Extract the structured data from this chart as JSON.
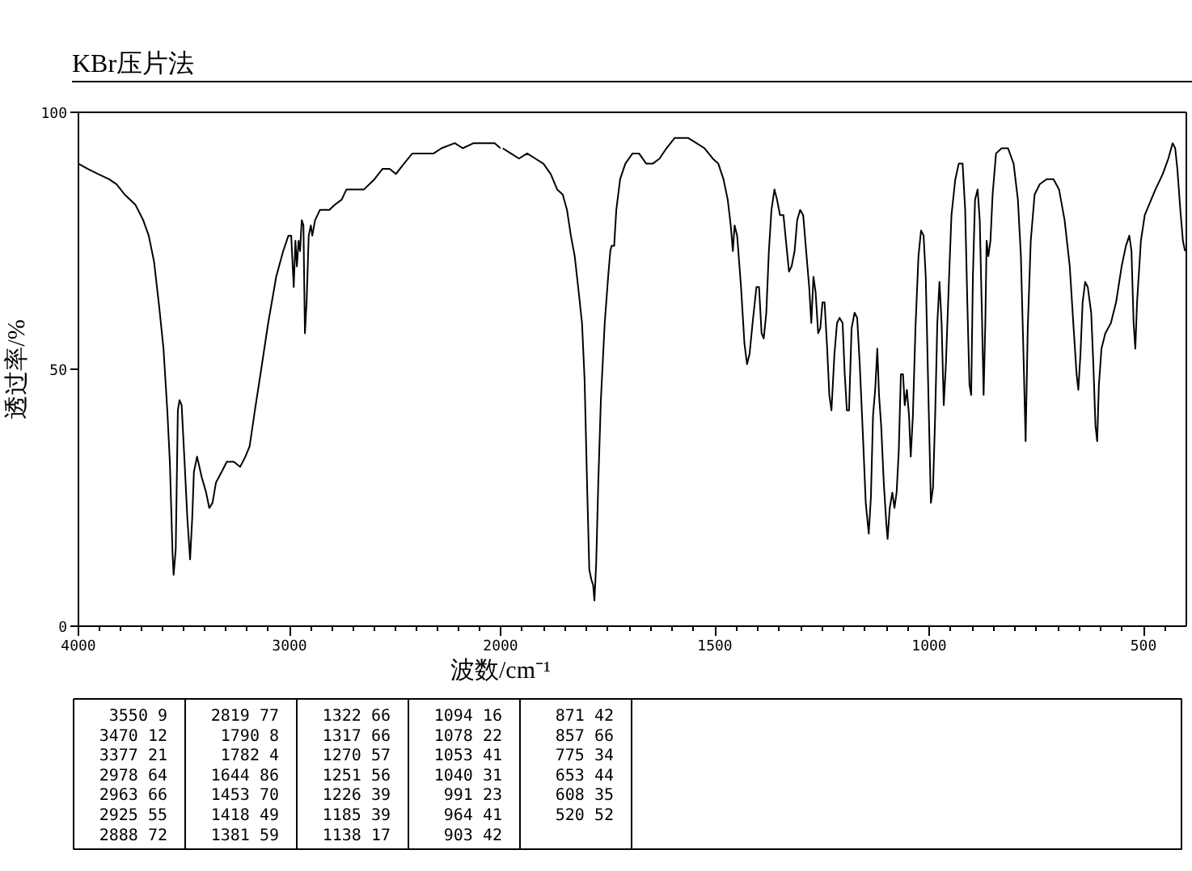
{
  "chart_data": [
    {
      "type": "line",
      "title": "KBr压片法",
      "xlabel": "波数/cm⁻¹",
      "ylabel": "透过率/%",
      "color": "#000000",
      "xlim": [
        4000,
        2000
      ],
      "xticks": [
        4000,
        3000,
        2000
      ],
      "ylim": [
        0,
        100
      ],
      "yticks": [
        0,
        50,
        100
      ],
      "grid": false,
      "x": [
        4000,
        3957,
        3907,
        3856,
        3819,
        3781,
        3730,
        3693,
        3667,
        3642,
        3617,
        3597,
        3579,
        3567,
        3554,
        3549,
        3539,
        3529,
        3521,
        3511,
        3496,
        3484,
        3471,
        3461,
        3453,
        3438,
        3416,
        3395,
        3380,
        3365,
        3348,
        3322,
        3297,
        3264,
        3234,
        3209,
        3189,
        3164,
        3134,
        3101,
        3063,
        3030,
        3005,
        2992,
        2980,
        2972,
        2965,
        2957,
        2950,
        2942,
        2934,
        2927,
        2919,
        2909,
        2899,
        2892,
        2879,
        2856,
        2836,
        2811,
        2786,
        2753,
        2730,
        2698,
        2647,
        2597,
        2559,
        2526,
        2496,
        2458,
        2418,
        2380,
        2317,
        2280,
        2217,
        2179,
        2128,
        2065,
        2028,
        2000
      ],
      "values": [
        90,
        89,
        88,
        87,
        86,
        84,
        82,
        79,
        76,
        71,
        62,
        54,
        42,
        32,
        14,
        10,
        15,
        42,
        44,
        43,
        31,
        21,
        13,
        21,
        30,
        33,
        29,
        26,
        23,
        24,
        28,
        30,
        32,
        32,
        31,
        33,
        35,
        42,
        50,
        59,
        68,
        73,
        76,
        76,
        66,
        75,
        70,
        75,
        73,
        79,
        78,
        57,
        63,
        76,
        78,
        76,
        79,
        81,
        81,
        81,
        82,
        83,
        85,
        85,
        85,
        87,
        89,
        89,
        88,
        90,
        92,
        92,
        92,
        93,
        94,
        93,
        94,
        94,
        94,
        93
      ]
    },
    {
      "type": "line",
      "color": "#000000",
      "xlim": [
        2000,
        400
      ],
      "xticks": [
        1500,
        1000,
        500
      ],
      "ylim": [
        0,
        100
      ],
      "tick_labels": "x",
      "grid": false,
      "x": [
        1995,
        1976,
        1957,
        1938,
        1919,
        1900,
        1883,
        1868,
        1855,
        1845,
        1836,
        1827,
        1819,
        1810,
        1804,
        1798,
        1793,
        1788,
        1784,
        1781,
        1777,
        1772,
        1766,
        1757,
        1749,
        1744,
        1741,
        1735,
        1730,
        1721,
        1709,
        1692,
        1677,
        1660,
        1645,
        1629,
        1613,
        1594,
        1575,
        1562,
        1543,
        1524,
        1505,
        1492,
        1480,
        1470,
        1463,
        1458,
        1454,
        1448,
        1439,
        1431,
        1425,
        1419,
        1412,
        1403,
        1397,
        1391,
        1386,
        1380,
        1374,
        1368,
        1361,
        1355,
        1348,
        1340,
        1333,
        1327,
        1321,
        1314,
        1308,
        1301,
        1294,
        1287,
        1280,
        1275,
        1270,
        1265,
        1259,
        1254,
        1249,
        1244,
        1238,
        1233,
        1228,
        1221,
        1215,
        1209,
        1202,
        1197,
        1192,
        1187,
        1181,
        1174,
        1168,
        1162,
        1154,
        1148,
        1141,
        1136,
        1131,
        1126,
        1121,
        1117,
        1112,
        1106,
        1100,
        1097,
        1092,
        1086,
        1081,
        1076,
        1071,
        1066,
        1061,
        1057,
        1052,
        1047,
        1043,
        1038,
        1032,
        1025,
        1019,
        1013,
        1008,
        1001,
        996,
        991,
        986,
        981,
        976,
        971,
        966,
        961,
        954,
        948,
        939,
        931,
        922,
        916,
        911,
        906,
        902,
        898,
        893,
        887,
        882,
        877,
        873,
        869,
        866,
        862,
        857,
        852,
        844,
        831,
        816,
        803,
        793,
        786,
        780,
        775,
        770,
        763,
        754,
        742,
        726,
        710,
        697,
        684,
        672,
        663,
        656,
        652,
        647,
        642,
        636,
        630,
        622,
        617,
        612,
        608,
        604,
        598,
        589,
        576,
        564,
        551,
        541,
        533,
        528,
        523,
        519,
        515,
        506,
        497,
        487,
        472,
        455,
        442,
        432,
        426,
        421,
        414,
        408,
        403
      ],
      "values": [
        93,
        92,
        91,
        92,
        91,
        90,
        88,
        85,
        84,
        81,
        76,
        72,
        66,
        59,
        48,
        27,
        11,
        9,
        8,
        5,
        12,
        28,
        44,
        59,
        68,
        73,
        74,
        74,
        81,
        87,
        90,
        92,
        92,
        90,
        90,
        91,
        93,
        95,
        95,
        95,
        94,
        93,
        91,
        90,
        87,
        83,
        78,
        73,
        78,
        76,
        66,
        55,
        51,
        53,
        59,
        66,
        66,
        57,
        56,
        61,
        73,
        81,
        85,
        83,
        80,
        80,
        74,
        69,
        70,
        73,
        79,
        81,
        80,
        73,
        66,
        59,
        68,
        65,
        57,
        58,
        63,
        63,
        54,
        45,
        42,
        53,
        59,
        60,
        59,
        49,
        42,
        42,
        58,
        61,
        60,
        51,
        36,
        24,
        18,
        25,
        41,
        46,
        54,
        45,
        39,
        28,
        20,
        17,
        23,
        26,
        23,
        26,
        34,
        49,
        49,
        43,
        46,
        41,
        33,
        41,
        58,
        72,
        77,
        76,
        68,
        42,
        24,
        27,
        41,
        59,
        67,
        59,
        43,
        51,
        67,
        80,
        87,
        90,
        90,
        81,
        63,
        47,
        45,
        68,
        83,
        85,
        79,
        61,
        45,
        59,
        75,
        72,
        75,
        84,
        92,
        93,
        93,
        90,
        83,
        72,
        53,
        36,
        58,
        75,
        84,
        86,
        87,
        87,
        85,
        79,
        70,
        58,
        49,
        46,
        53,
        63,
        67,
        66,
        61,
        51,
        39,
        36,
        47,
        54,
        57,
        59,
        63,
        70,
        74,
        76,
        73,
        59,
        54,
        63,
        75,
        80,
        82,
        85,
        88,
        91,
        94,
        93,
        89,
        81,
        75,
        73
      ]
    },
    {
      "type": "other",
      "annotations": [
        "3550 9",
        "3470 12",
        "3377 21",
        "2978 64",
        "2963 66",
        "2925 55",
        "2888 72",
        "2819 77",
        "1790 8",
        "1782 4",
        "1644 86",
        "1453 70",
        "1418 49",
        "1381 59",
        "1322 66",
        "1317 66",
        "1270 57",
        "1251 56",
        "1226 39",
        "1185 39",
        "1138 17",
        "1094 16",
        "1078 22",
        "1053 41",
        "1040 31",
        "991 23",
        "964 41",
        "903 42",
        "871 42",
        "857 66",
        "775 34",
        "653 44",
        "608 35",
        "520 52"
      ]
    }
  ]
}
